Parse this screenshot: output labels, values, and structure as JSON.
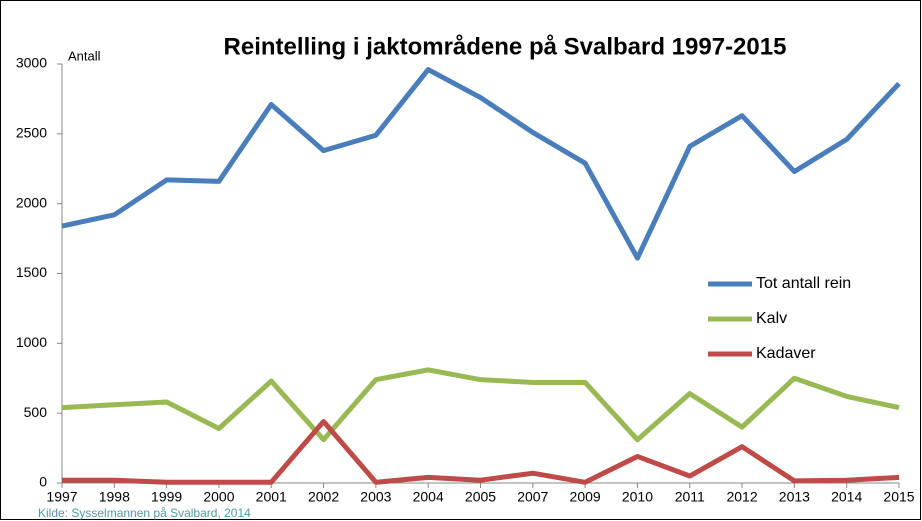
{
  "chart_data": {
    "type": "line",
    "title": "Reintelling i jaktområdene på Svalbard 1997-2015",
    "y_label": "Antall",
    "source": "Kilde: Sysselmannen på Svalbard, 2014",
    "categories": [
      "1997",
      "1998",
      "1999",
      "2000",
      "2001",
      "2002",
      "2003",
      "2004",
      "2005",
      "2007",
      "2009",
      "2010",
      "2011",
      "2012",
      "2013",
      "2014",
      "2015"
    ],
    "series": [
      {
        "name": "Tot antall rein",
        "color": "#4a7ebb",
        "values": [
          1840,
          1920,
          2170,
          2160,
          2710,
          2380,
          2490,
          2960,
          2760,
          2510,
          2290,
          1610,
          2410,
          2630,
          2230,
          2460,
          2860
        ]
      },
      {
        "name": "Kalv",
        "color": "#98b954",
        "values": [
          540,
          560,
          580,
          390,
          730,
          310,
          740,
          810,
          740,
          720,
          720,
          310,
          640,
          400,
          750,
          620,
          540
        ]
      },
      {
        "name": "Kadaver",
        "color": "#be4b48",
        "values": [
          20,
          20,
          5,
          5,
          5,
          440,
          5,
          40,
          20,
          70,
          5,
          190,
          50,
          260,
          15,
          20,
          40
        ]
      }
    ],
    "ylim": [
      0,
      3000
    ],
    "yticks": [
      0,
      500,
      1000,
      1500,
      2000,
      2500,
      3000
    ],
    "grid": false,
    "legend": "right"
  }
}
